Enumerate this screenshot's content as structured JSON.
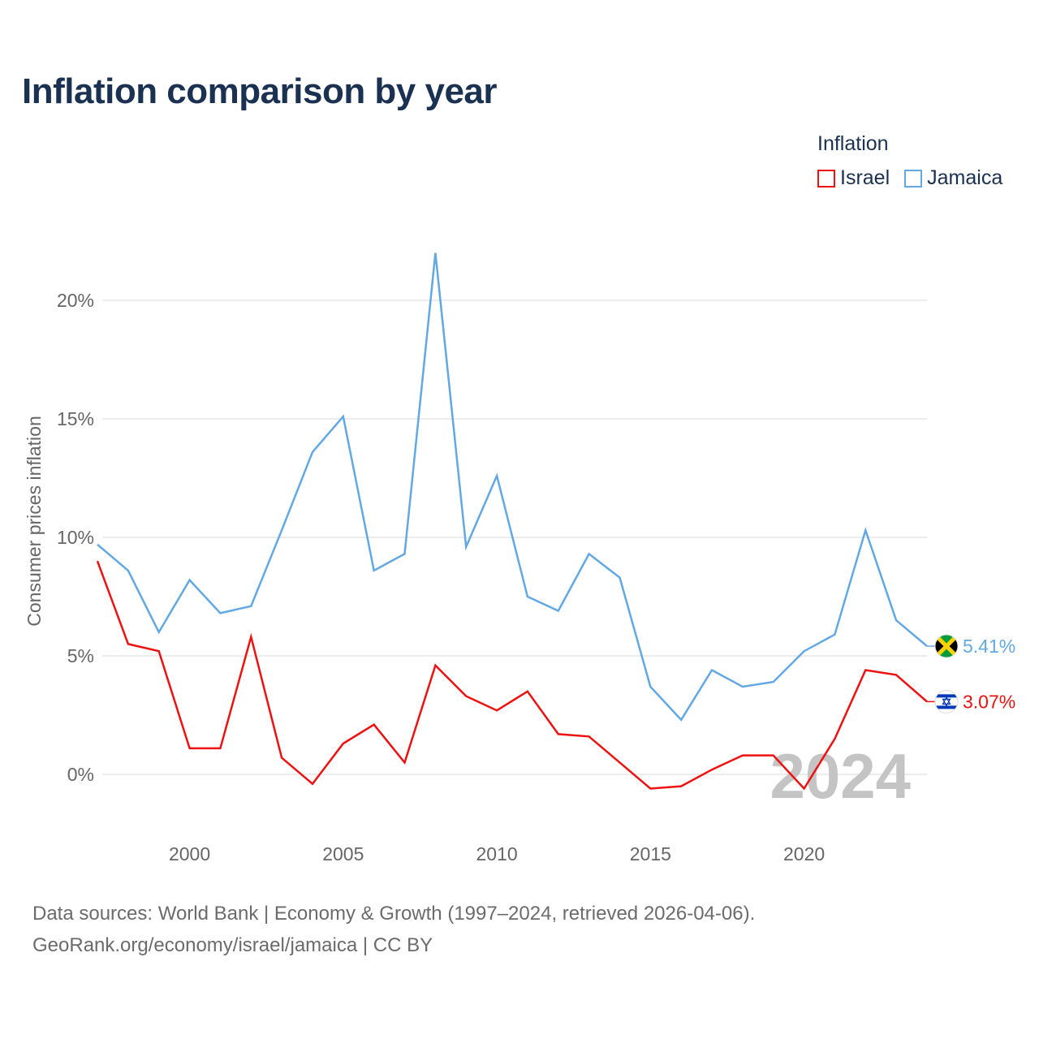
{
  "title": "Inflation comparison by year",
  "legend": {
    "title": "Inflation",
    "items": [
      {
        "label": "Israel",
        "color": "#ee1111"
      },
      {
        "label": "Jamaica",
        "color": "#62a8e3"
      }
    ]
  },
  "watermark_year": "2024",
  "source": {
    "line1": "Data sources: World Bank | Economy & Growth (1997–2024, retrieved 2026-04-06).",
    "line2": "GeoRank.org/economy/israel/jamaica | CC BY"
  },
  "chart_data": {
    "type": "line",
    "title": "Inflation comparison by year",
    "xlabel": "",
    "ylabel": "Consumer prices inflation",
    "x": [
      1997,
      1998,
      1999,
      2000,
      2001,
      2002,
      2003,
      2004,
      2005,
      2006,
      2007,
      2008,
      2009,
      2010,
      2011,
      2012,
      2013,
      2014,
      2015,
      2016,
      2017,
      2018,
      2019,
      2020,
      2021,
      2022,
      2023,
      2024
    ],
    "xticks": [
      2000,
      2005,
      2010,
      2015,
      2020
    ],
    "xtick_labels": [
      "2000",
      "2005",
      "2010",
      "2015",
      "2020"
    ],
    "yticks": [
      0,
      5,
      10,
      15,
      20
    ],
    "ytick_labels": [
      "0%",
      "5%",
      "10%",
      "15%",
      "20%"
    ],
    "xlim": [
      1997,
      2024
    ],
    "ylim": [
      -2,
      23
    ],
    "grid": true,
    "series": [
      {
        "name": "Israel",
        "color": "#ee1111",
        "end_label": "3.07%",
        "flag": "israel-flag-icon",
        "values": [
          9.0,
          5.5,
          5.2,
          1.1,
          1.1,
          5.8,
          0.7,
          -0.4,
          1.3,
          2.1,
          0.5,
          4.6,
          3.3,
          2.7,
          3.5,
          1.7,
          1.6,
          0.5,
          -0.6,
          -0.5,
          0.2,
          0.8,
          0.8,
          -0.6,
          1.5,
          4.4,
          4.2,
          3.07
        ]
      },
      {
        "name": "Jamaica",
        "color": "#62a8e3",
        "end_label": "5.41%",
        "flag": "jamaica-flag-icon",
        "values": [
          9.7,
          8.6,
          6.0,
          8.2,
          6.8,
          7.1,
          10.3,
          13.6,
          15.1,
          8.6,
          9.3,
          22.0,
          9.6,
          12.6,
          7.5,
          6.9,
          9.3,
          8.3,
          3.7,
          2.3,
          4.4,
          3.7,
          3.9,
          5.2,
          5.9,
          10.3,
          6.5,
          5.41
        ]
      }
    ]
  }
}
